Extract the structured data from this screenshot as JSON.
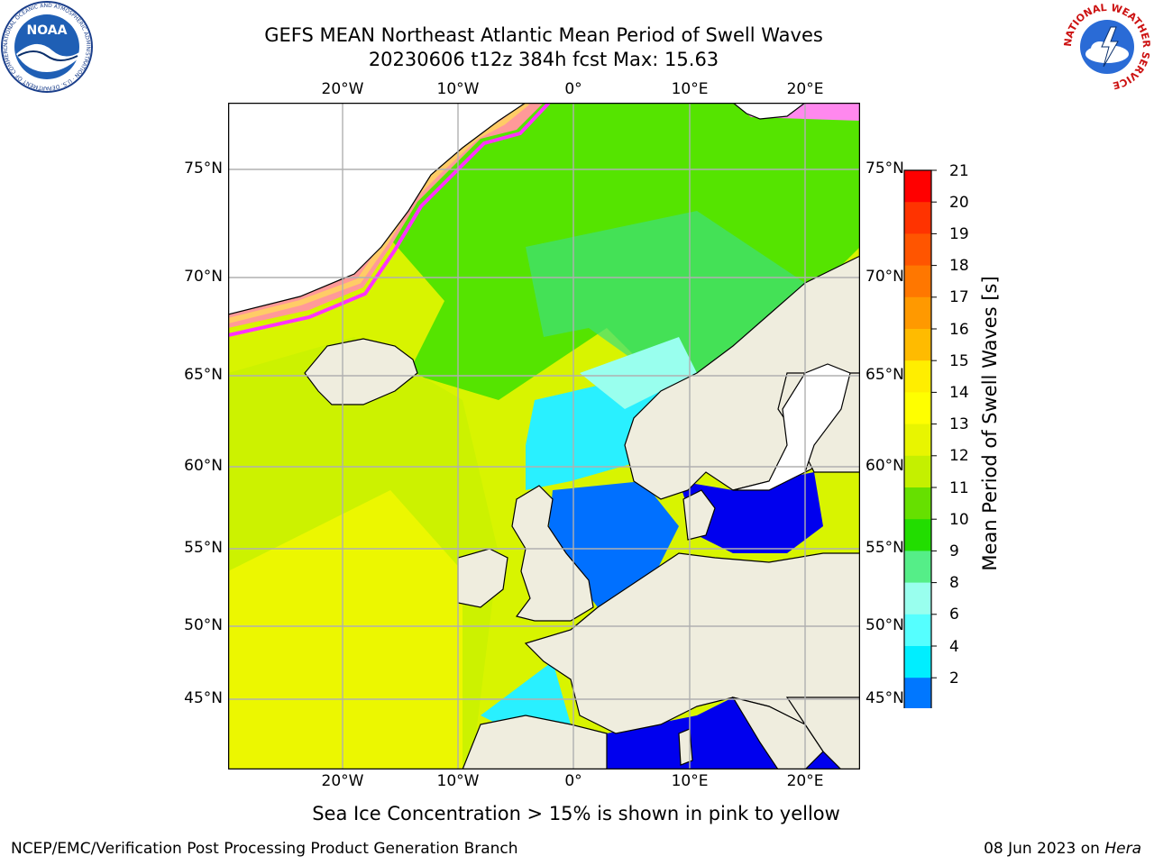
{
  "title": {
    "line1": "GEFS MEAN Northeast Atlantic Mean Period of Swell Waves",
    "line2": "20230606 t12z 384h fcst   Max: 15.63"
  },
  "subtitle": "Sea Ice Concentration > 15% is shown in pink to yellow",
  "footer": {
    "left": "NCEP/EMC/Verification Post Processing Product Generation Branch",
    "date": "08 Jun 2023 on ",
    "machine": "Hera"
  },
  "map": {
    "lon_ticks": [
      "20°W",
      "10°W",
      "0°",
      "10°E",
      "20°E"
    ],
    "lat_ticks": [
      "75°N",
      "70°N",
      "65°N",
      "60°N",
      "55°N",
      "50°N",
      "45°N"
    ],
    "ocean_colors": {
      "atlantic": "#d8f400",
      "north": "#55e400",
      "northsea": "#29f0ff",
      "deep": "#0070ff",
      "baltic": "#0000ee"
    },
    "land_color": "#efedde",
    "ice_colors": [
      "#ff33ff",
      "#ff9999",
      "#ffcc66"
    ]
  },
  "colorbar": {
    "label": "Mean Period of Swell Waves [s]",
    "ticks": [
      "21",
      "20",
      "19",
      "18",
      "17",
      "16",
      "15",
      "14",
      "13",
      "12",
      "11",
      "10",
      "9",
      "8",
      "6",
      "4",
      "2"
    ],
    "colors": [
      "#ff0000",
      "#ff3300",
      "#ff5500",
      "#ff7700",
      "#ff9900",
      "#ffbb00",
      "#ffee00",
      "#ffff00",
      "#e8f500",
      "#c4f000",
      "#66e000",
      "#22dd00",
      "#55ee88",
      "#99ffee",
      "#55ffff",
      "#00eeff",
      "#0077ff",
      "#0000ff"
    ]
  },
  "logos": {
    "noaa": "NOAA",
    "noaa_ring": "NATIONAL OCEANIC AND ATMOSPHERIC ADMINISTRATION · U.S. DEPARTMENT OF COMMERCE",
    "nws_ring": "NATIONAL WEATHER SERVICE"
  }
}
